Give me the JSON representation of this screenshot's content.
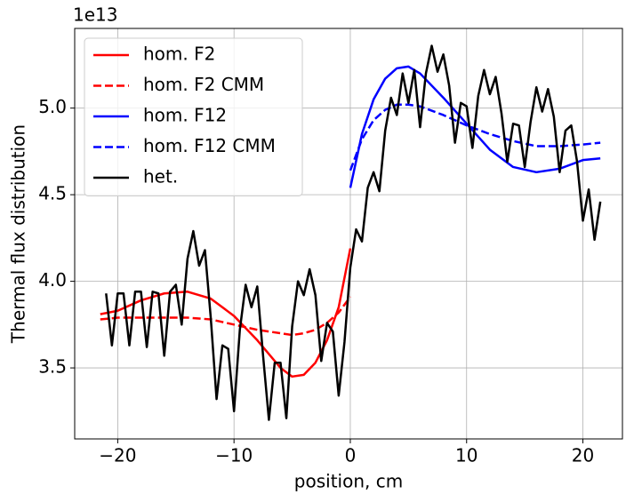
{
  "chart_data": {
    "type": "line",
    "xlabel": "position, cm",
    "ylabel": "Thermal flux distribution",
    "y_offset_label": "1e13",
    "xlim": [
      -23.7,
      23.4
    ],
    "ylim": [
      3.09,
      5.46
    ],
    "xticks": [
      {
        "value": -20,
        "label": "−20"
      },
      {
        "value": -10,
        "label": "−10"
      },
      0,
      10,
      20
    ],
    "yticks": [
      3.5,
      {
        "value": 4.0,
        "label": "4.0"
      },
      4.5,
      {
        "value": 5.0,
        "label": "5.0"
      }
    ],
    "grid": true,
    "legend": "upper left",
    "series": [
      {
        "name": "hom. F2",
        "color": "#ff0000",
        "linestyle": "solid",
        "x": [
          -21.5,
          -20,
          -18,
          -16,
          -14,
          -12,
          -10,
          -8,
          -6,
          -5,
          -4,
          -3,
          -2,
          -1,
          0
        ],
        "values": [
          3.81,
          3.83,
          3.89,
          3.93,
          3.94,
          3.9,
          3.8,
          3.66,
          3.5,
          3.45,
          3.46,
          3.53,
          3.66,
          3.85,
          4.19
        ]
      },
      {
        "name": "hom. F2 CMM",
        "color": "#ff0000",
        "linestyle": "dashed",
        "x": [
          -21.5,
          -20,
          -18,
          -16,
          -14,
          -12,
          -10,
          -8,
          -6,
          -5,
          -4,
          -3,
          -2,
          -1,
          0
        ],
        "values": [
          3.78,
          3.79,
          3.79,
          3.79,
          3.79,
          3.78,
          3.75,
          3.72,
          3.7,
          3.69,
          3.7,
          3.72,
          3.76,
          3.82,
          3.91
        ]
      },
      {
        "name": "hom. F12",
        "color": "#0000ff",
        "linestyle": "solid",
        "x": [
          0,
          1,
          2,
          3,
          4,
          5,
          6,
          8,
          10,
          12,
          14,
          16,
          18,
          20,
          21.5
        ],
        "values": [
          4.54,
          4.85,
          5.05,
          5.17,
          5.23,
          5.24,
          5.2,
          5.06,
          4.91,
          4.76,
          4.66,
          4.63,
          4.65,
          4.7,
          4.71
        ]
      },
      {
        "name": "hom. F12 CMM",
        "color": "#0000ff",
        "linestyle": "dashed",
        "x": [
          0,
          1,
          2,
          3,
          4,
          5,
          6,
          8,
          10,
          12,
          14,
          16,
          18,
          20,
          21.5
        ],
        "values": [
          4.64,
          4.82,
          4.93,
          4.99,
          5.02,
          5.02,
          5.01,
          4.96,
          4.9,
          4.85,
          4.81,
          4.78,
          4.78,
          4.79,
          4.8
        ]
      },
      {
        "name": "het.",
        "color": "#000000",
        "linestyle": "solid",
        "x": [
          -21,
          -20.5,
          -20,
          -19.5,
          -19,
          -18.5,
          -18,
          -17.5,
          -17,
          -16.5,
          -16,
          -15.5,
          -15,
          -14.5,
          -14,
          -13.5,
          -13,
          -12.5,
          -12,
          -11.5,
          -11,
          -10.5,
          -10,
          -9.5,
          -9,
          -8.5,
          -8,
          -7.5,
          -7,
          -6.5,
          -6,
          -5.5,
          -5,
          -4.5,
          -4,
          -3.5,
          -3,
          -2.5,
          -2,
          -1.5,
          -1,
          -0.5,
          0,
          0.5,
          1,
          1.5,
          2,
          2.5,
          3,
          3.5,
          4,
          4.5,
          5,
          5.5,
          6,
          6.5,
          7,
          7.5,
          8,
          8.5,
          9,
          9.5,
          10,
          10.5,
          11,
          11.5,
          12,
          12.5,
          13,
          13.5,
          14,
          14.5,
          15,
          15.5,
          16,
          16.5,
          17,
          17.5,
          18,
          18.5,
          19,
          19.5,
          20,
          20.5,
          21,
          21.5
        ],
        "values": [
          3.93,
          3.63,
          3.93,
          3.93,
          3.63,
          3.94,
          3.94,
          3.62,
          3.94,
          3.93,
          3.57,
          3.94,
          3.98,
          3.75,
          4.13,
          4.29,
          4.09,
          4.18,
          3.79,
          3.32,
          3.63,
          3.61,
          3.25,
          3.72,
          3.98,
          3.85,
          3.97,
          3.57,
          3.2,
          3.53,
          3.53,
          3.21,
          3.74,
          4.0,
          3.92,
          4.07,
          3.92,
          3.54,
          3.76,
          3.71,
          3.34,
          3.65,
          4.08,
          4.3,
          4.23,
          4.54,
          4.63,
          4.52,
          4.87,
          5.06,
          4.96,
          5.2,
          5.03,
          5.22,
          4.89,
          5.2,
          5.36,
          5.21,
          5.31,
          5.13,
          4.8,
          5.03,
          5.01,
          4.77,
          5.07,
          5.22,
          5.08,
          5.18,
          4.97,
          4.69,
          4.91,
          4.9,
          4.66,
          4.92,
          5.12,
          4.98,
          5.11,
          4.95,
          4.63,
          4.87,
          4.9,
          4.69,
          4.35,
          4.53,
          4.24,
          4.46
        ]
      }
    ]
  }
}
